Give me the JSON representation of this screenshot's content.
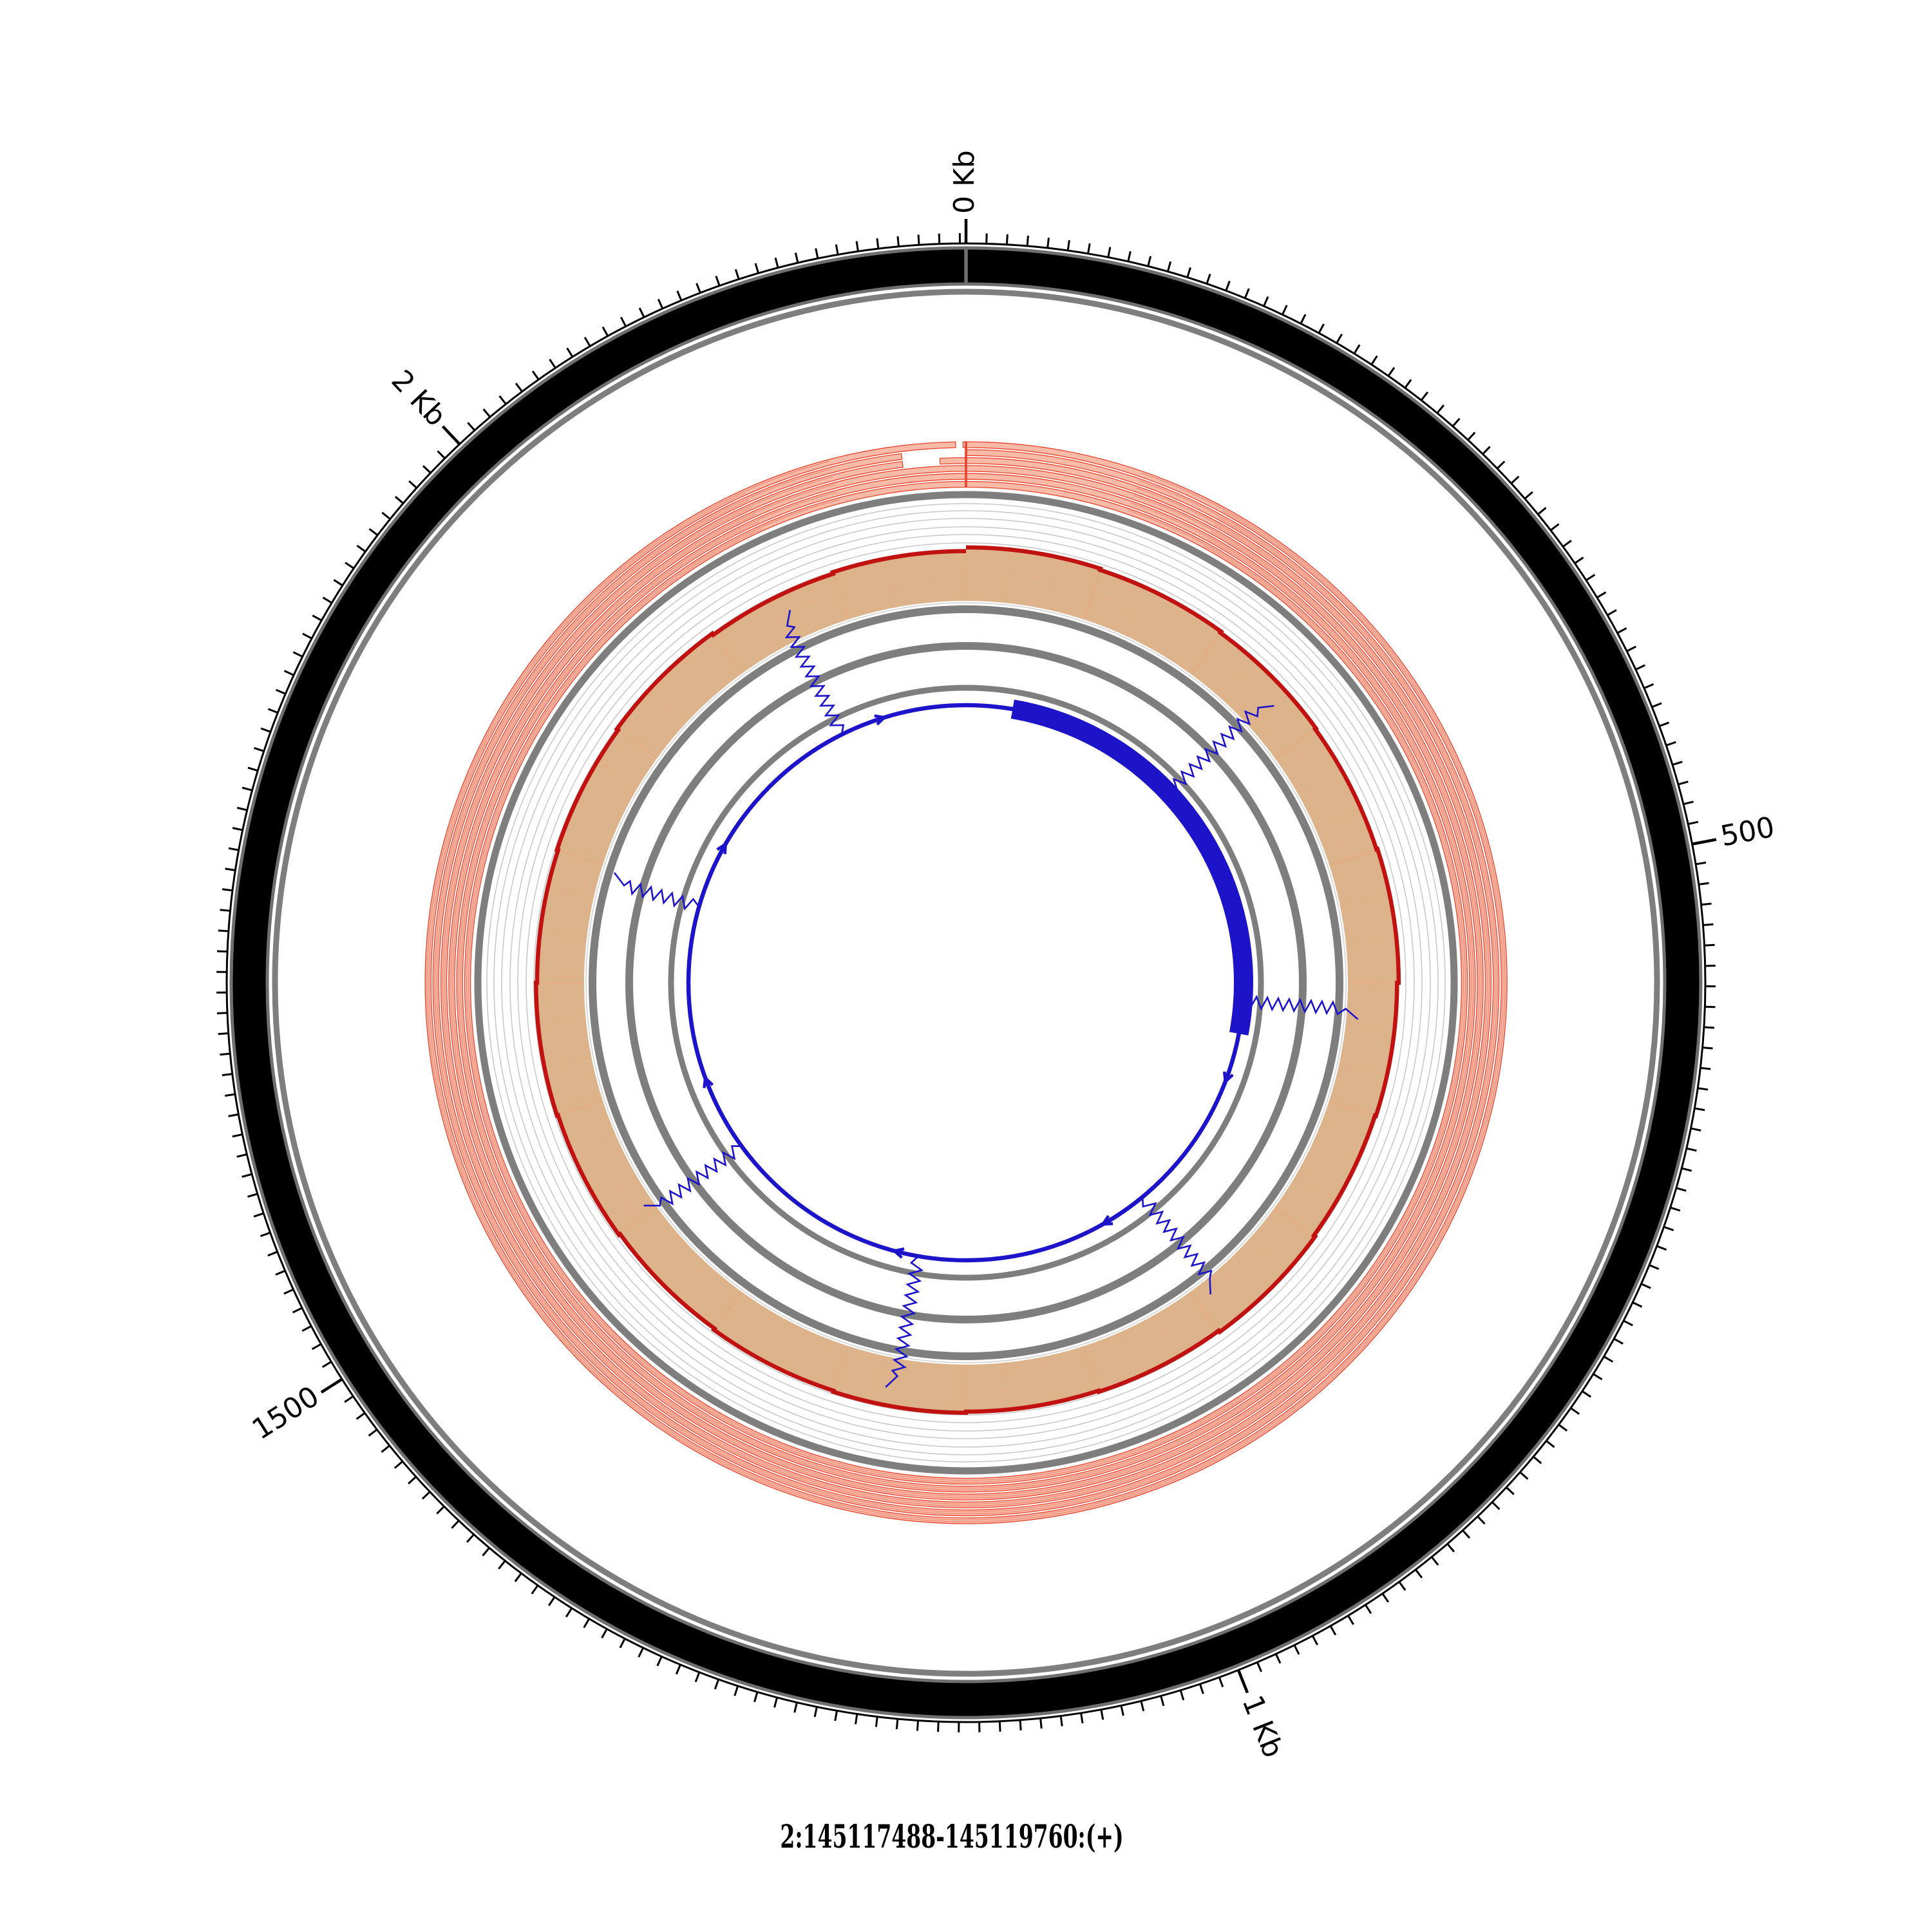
{
  "title": {
    "text": "2:145117488-145119760:(+)"
  },
  "chart_data": {
    "type": "circular-genome-tracks",
    "title": "2:145117488-145119760:(+)",
    "region": {
      "chromosome": "2",
      "start": 145117488,
      "end": 145119760,
      "strand": "+",
      "length_bp": 2273
    },
    "axis": {
      "total_bp": 2273,
      "minor_tick_bp": 10,
      "major_tick_bp": 500,
      "tick_labels": [
        {
          "bp": 0,
          "label": "0 Kb"
        },
        {
          "bp": 500,
          "label": "500"
        },
        {
          "bp": 1000,
          "label": "1 Kb"
        },
        {
          "bp": 1500,
          "label": "1500"
        },
        {
          "bp": 2000,
          "label": "2 Kb"
        }
      ]
    },
    "tracks": {
      "ideogram": {
        "fill": "#000000",
        "edge_color": "#6f6f6f",
        "boundary_bp": 0
      },
      "reads": {
        "fill": "#F9BBA8",
        "stroke": "#E6432F",
        "rows": [
          {
            "row": 1,
            "segments": [
              [
                0,
                2266
              ],
              [
                2271,
                2273
              ]
            ]
          },
          {
            "row": 2,
            "segments": [
              [
                0,
                2229
              ]
            ]
          },
          {
            "row": 3,
            "segments": [
              [
                0,
                2229
              ],
              [
                2255,
                2273
              ]
            ]
          },
          {
            "row": 4,
            "segments": [
              [
                0,
                2273
              ]
            ]
          },
          {
            "row": 5,
            "segments": [
              [
                0,
                2273
              ]
            ]
          },
          {
            "row": 6,
            "segments": [
              [
                0,
                2273
              ]
            ]
          }
        ]
      },
      "coverage": {
        "line_color": "#C11212",
        "fill_color": "#DDB38C",
        "bin_line_color": "#E8A97E",
        "bins": 20,
        "depth": [
          1.0,
          0.975,
          0.95,
          0.93,
          0.95,
          0.92,
          0.9,
          0.93,
          0.9,
          0.88,
          0.9,
          0.88,
          0.855,
          0.88,
          0.9,
          0.88,
          0.9,
          0.93,
          0.9,
          0.93
        ]
      },
      "transcript": {
        "color": "#1D13C9",
        "strand": "+",
        "exons_bp": [
          [
            61,
            635
          ]
        ],
        "arrow_bp": [
          700,
          950,
          1231,
          1578,
          1894,
          2165
        ],
        "insertions": [
          {
            "bp": 295,
            "r_end": 643
          },
          {
            "bp": 593,
            "r_end": 611
          },
          {
            "bp": 887,
            "r_end": 615
          },
          {
            "bp": 1199,
            "r_end": 640
          },
          {
            "bp": 1477,
            "r_end": 608
          },
          {
            "bp": 1805,
            "r_end": 572
          },
          {
            "bp": 2105,
            "r_end": 640
          }
        ]
      }
    },
    "layout": {
      "center": [
        1500,
        1526
      ],
      "r_tick_circle": 1148,
      "tick_len_minor": 16,
      "tick_len_major": 38,
      "r_label": 1194,
      "label_font_size": 44,
      "ideogram_edges": [
        1141,
        1085
      ],
      "grayA": {
        "r": 1073,
        "w": 9
      },
      "reads_r_out": 840,
      "reads_row_pitch": 12.3,
      "reads_row_h": 9,
      "grayB": {
        "r": 758,
        "w": 11
      },
      "grid_radii": [
        744,
        733,
        721,
        708,
        696,
        683,
        671
      ],
      "grid_color": "#c9c9c9",
      "coverage_r_base": 593,
      "coverage_r_span": 83,
      "grayC": {
        "r": 580,
        "w": 12
      },
      "grayD": {
        "r": 523,
        "w": 12
      },
      "grayE": {
        "r": 458,
        "w": 9
      },
      "gray_color": "#7e7e7e",
      "transcript_r": 431,
      "exon_r": [
        416,
        446
      ]
    }
  }
}
